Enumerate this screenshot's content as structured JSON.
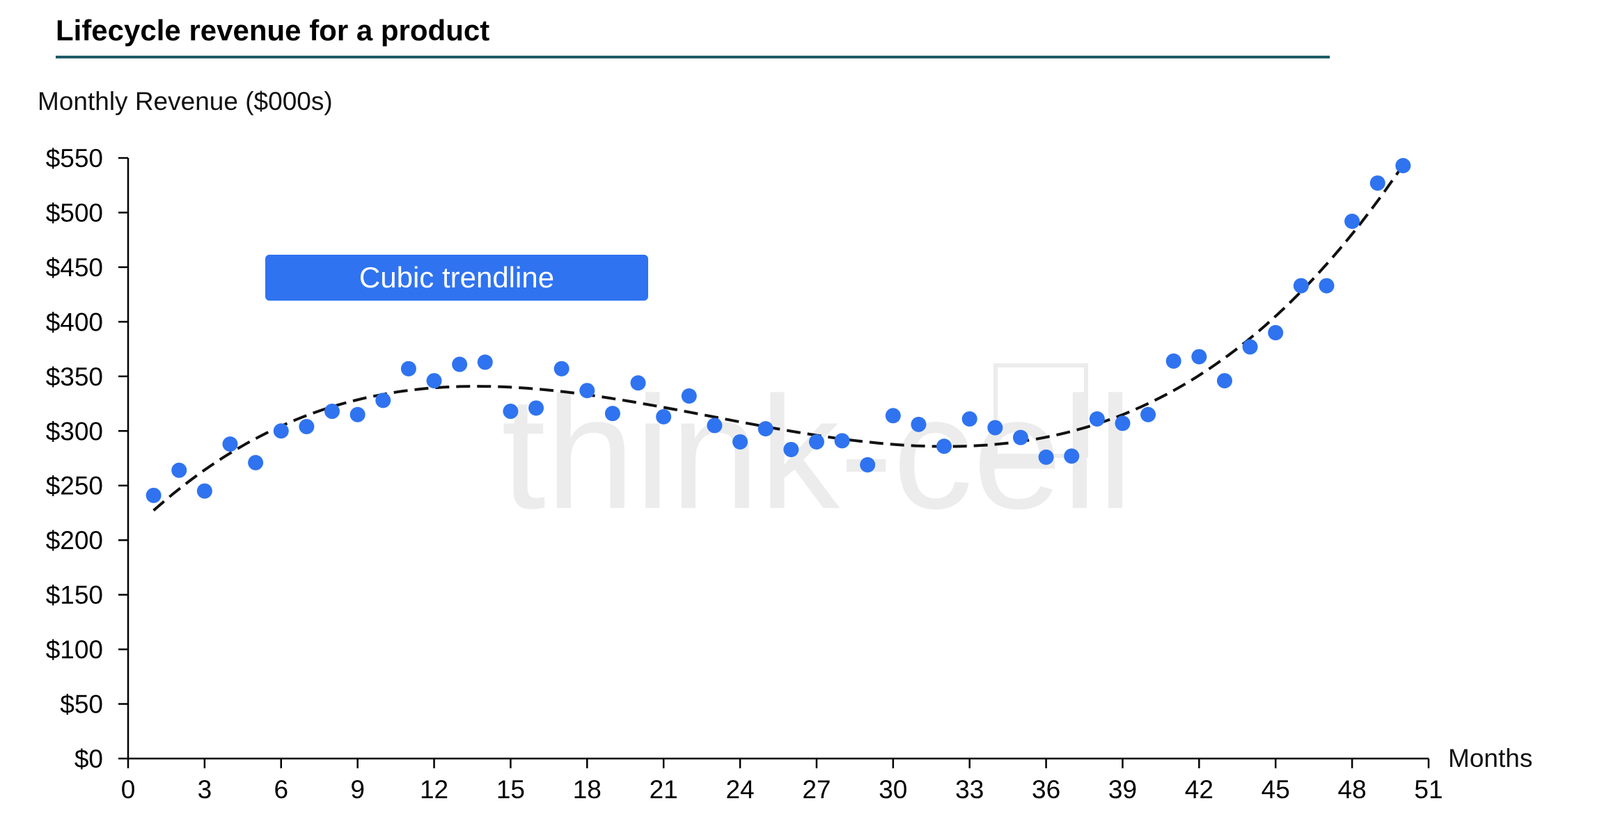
{
  "colors": {
    "point": "#2f73f0",
    "trend": "#111111",
    "title_rule": "#1f5b68",
    "callout_bg": "#2f73f0",
    "axis": "#000000"
  },
  "watermark": {
    "text": "think-cell"
  },
  "chart_data": {
    "type": "scatter",
    "title": "Lifecycle revenue for a product",
    "xlabel": "Months",
    "ylabel": "Monthly Revenue ($000s)",
    "xlim": [
      0,
      51
    ],
    "ylim": [
      0,
      550
    ],
    "x_ticks": [
      0,
      3,
      6,
      9,
      12,
      15,
      18,
      21,
      24,
      27,
      30,
      33,
      36,
      39,
      42,
      45,
      48,
      51
    ],
    "x_tick_labels": [
      "0",
      "3",
      "6",
      "9",
      "12",
      "15",
      "18",
      "21",
      "24",
      "27",
      "30",
      "33",
      "36",
      "39",
      "42",
      "45",
      "48",
      "51"
    ],
    "y_ticks": [
      0,
      50,
      100,
      150,
      200,
      250,
      300,
      350,
      400,
      450,
      500,
      550
    ],
    "y_tick_labels": [
      "$0",
      "$50",
      "$100",
      "$150",
      "$200",
      "$250",
      "$300",
      "$350",
      "$400",
      "$450",
      "$500",
      "$550"
    ],
    "grid": false,
    "annotation": "Cubic trendline",
    "trendline": {
      "type": "cubic",
      "style": "dashed",
      "x_range": [
        1,
        50
      ]
    },
    "x": [
      1,
      2,
      3,
      4,
      5,
      6,
      7,
      8,
      9,
      10,
      11,
      12,
      13,
      14,
      15,
      16,
      17,
      18,
      19,
      20,
      21,
      22,
      23,
      24,
      25,
      26,
      27,
      28,
      29,
      30,
      31,
      32,
      33,
      34,
      35,
      36,
      37,
      38,
      39,
      40,
      41,
      42,
      43,
      44,
      45,
      46,
      47,
      48,
      49,
      50
    ],
    "y": [
      241,
      264,
      245,
      288,
      271,
      300,
      304,
      318,
      315,
      328,
      357,
      346,
      361,
      363,
      318,
      321,
      357,
      337,
      316,
      344,
      313,
      332,
      305,
      290,
      302,
      283,
      290,
      291,
      269,
      314,
      306,
      286,
      311,
      303,
      294,
      276,
      277,
      311,
      307,
      315,
      364,
      368,
      346,
      377,
      390,
      433,
      433,
      492,
      527,
      543
    ]
  }
}
